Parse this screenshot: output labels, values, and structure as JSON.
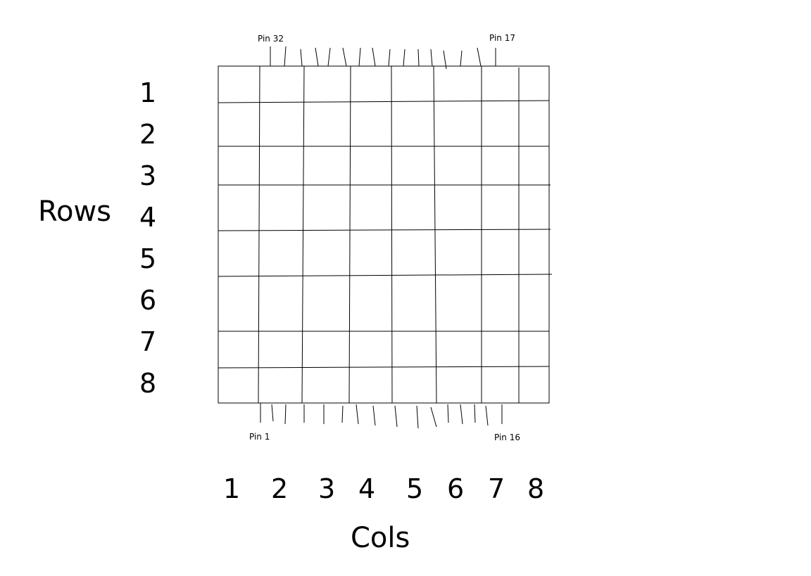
{
  "rows_label": "Rows",
  "cols_label": "Cols",
  "row_numbers": [
    "1",
    "2",
    "3",
    "4",
    "5",
    "6",
    "7",
    "8"
  ],
  "col_numbers": [
    "1",
    "2",
    "3",
    "4",
    "5",
    "6",
    "7",
    "8"
  ],
  "pins": {
    "top_left": "Pin 32",
    "top_right": "Pin 17",
    "bottom_left": "Pin 1",
    "bottom_right": "Pin 16"
  },
  "grid": {
    "rows": 8,
    "cols": 8
  },
  "pins_per_side": 16
}
